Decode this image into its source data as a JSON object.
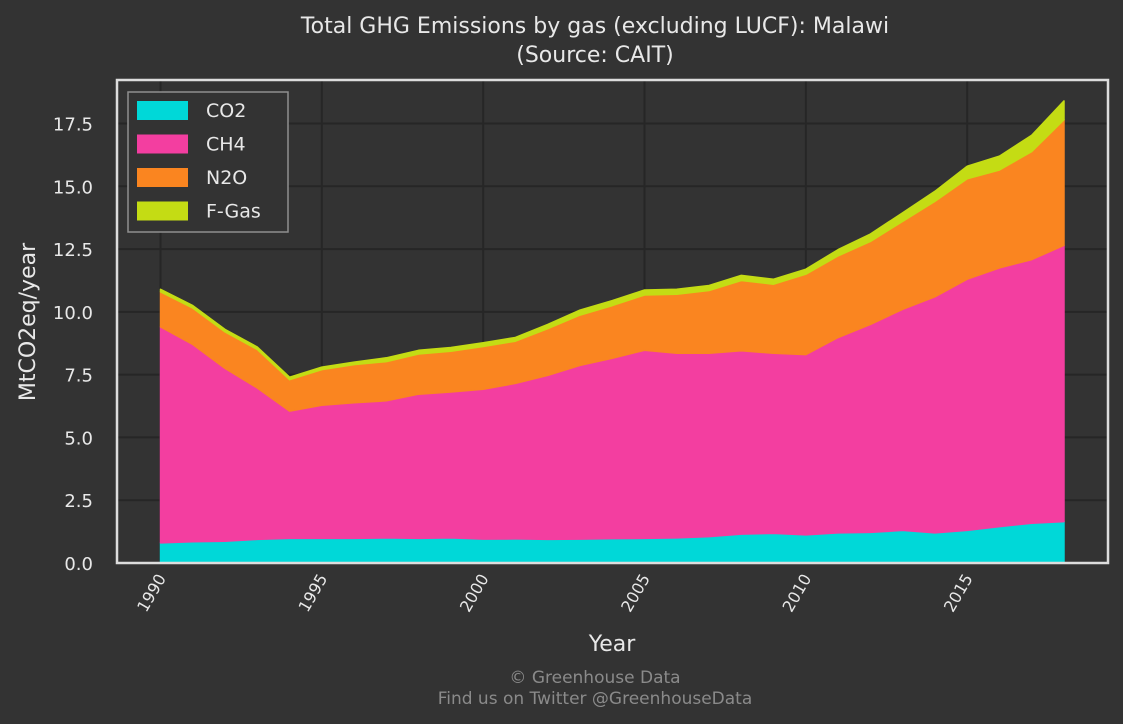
{
  "chart_data": {
    "type": "area",
    "stacked": true,
    "title": "Total GHG Emissions by gas (excluding LUCF): Malawi",
    "subtitle": "(Source: CAIT)",
    "xlabel": "Year",
    "ylabel": "MtCO2eq/year",
    "xlim": [
      1990,
      2018
    ],
    "ylim": [
      0,
      18.8
    ],
    "x_ticks": [
      1990,
      1995,
      2000,
      2005,
      2010,
      2015
    ],
    "x_tick_labels": [
      "1990",
      "1995",
      "2000",
      "2005",
      "2010",
      "2015"
    ],
    "y_ticks": [
      0,
      2.5,
      5,
      7.5,
      10,
      12.5,
      15,
      17.5
    ],
    "y_tick_labels": [
      "0.0",
      "2.5",
      "5.0",
      "7.5",
      "10.0",
      "12.5",
      "15.0",
      "17.5"
    ],
    "grid": true,
    "legend_position": "top-left",
    "x": [
      1990,
      1991,
      1992,
      1993,
      1994,
      1995,
      1996,
      1997,
      1998,
      1999,
      2000,
      2001,
      2002,
      2003,
      2004,
      2005,
      2006,
      2007,
      2008,
      2009,
      2010,
      2011,
      2012,
      2013,
      2014,
      2015,
      2016,
      2017,
      2018
    ],
    "series": [
      {
        "name": "CO2",
        "color": "#00d8d8",
        "values": [
          0.8,
          0.85,
          0.87,
          0.94,
          0.98,
          0.98,
          0.98,
          1.0,
          0.98,
          1.0,
          0.95,
          0.96,
          0.94,
          0.95,
          0.97,
          0.98,
          1.0,
          1.05,
          1.15,
          1.18,
          1.12,
          1.2,
          1.22,
          1.3,
          1.2,
          1.3,
          1.45,
          1.58,
          1.65
        ]
      },
      {
        "name": "CH4",
        "color": "#f33ea0",
        "values": [
          8.6,
          7.85,
          6.88,
          6.03,
          5.07,
          5.3,
          5.4,
          5.46,
          5.74,
          5.81,
          5.97,
          6.19,
          6.53,
          6.92,
          7.18,
          7.49,
          7.35,
          7.3,
          7.3,
          7.17,
          7.18,
          7.78,
          8.28,
          8.8,
          9.4,
          10.0,
          10.3,
          10.5,
          11.0
        ]
      },
      {
        "name": "N2O",
        "color": "#fa8520",
        "values": [
          1.4,
          1.45,
          1.45,
          1.53,
          1.25,
          1.42,
          1.52,
          1.56,
          1.6,
          1.62,
          1.7,
          1.68,
          1.86,
          2.0,
          2.1,
          2.2,
          2.35,
          2.5,
          2.8,
          2.75,
          3.2,
          3.25,
          3.3,
          3.5,
          3.8,
          4.0,
          3.9,
          4.3,
          5.0
        ]
      },
      {
        "name": "F-Gas",
        "color": "#c4dc14",
        "values": [
          0.1,
          0.1,
          0.1,
          0.1,
          0.1,
          0.1,
          0.1,
          0.15,
          0.15,
          0.15,
          0.15,
          0.15,
          0.17,
          0.2,
          0.2,
          0.2,
          0.2,
          0.2,
          0.2,
          0.2,
          0.2,
          0.25,
          0.3,
          0.35,
          0.4,
          0.5,
          0.55,
          0.65,
          0.75
        ]
      }
    ]
  },
  "footer": {
    "credit": "© Greenhouse Data",
    "twitter": "Find us on Twitter @GreenhouseData"
  }
}
